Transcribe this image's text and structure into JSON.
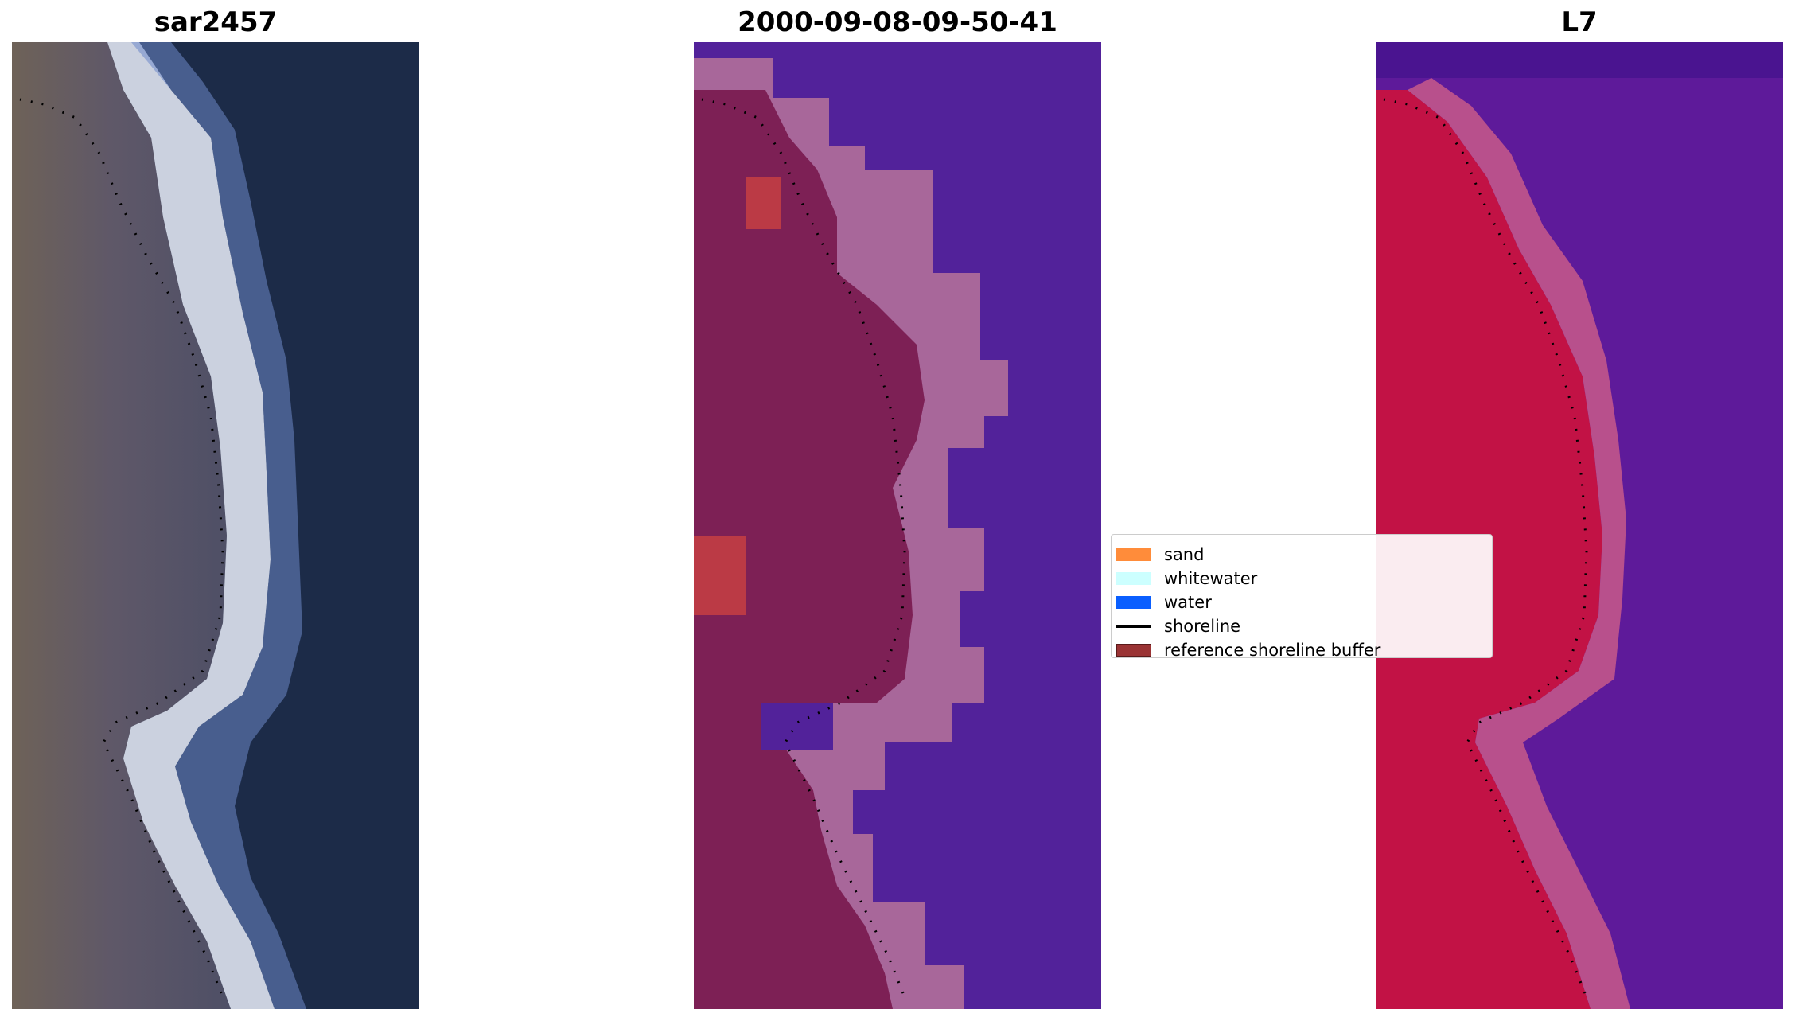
{
  "panels": [
    {
      "title": "sar2457",
      "image": "rgb-satellite-image"
    },
    {
      "title": "2000-09-08-09-50-41",
      "image": "classified-image"
    },
    {
      "title": "L7",
      "image": "false-color-image"
    }
  ],
  "legend": {
    "items": [
      {
        "label": "sand",
        "color": "#FF8C3A",
        "kind": "patch"
      },
      {
        "label": "whitewater",
        "color": "#CCFFFF",
        "kind": "patch"
      },
      {
        "label": "water",
        "color": "#0A5FFF",
        "kind": "patch"
      },
      {
        "label": "shoreline",
        "color": "#000000",
        "kind": "line"
      },
      {
        "label": "reference shoreline buffer",
        "color": "#9A3334",
        "kind": "patch"
      }
    ]
  },
  "colors": {
    "deep_water": "#1C2B48",
    "land": "#6B6070",
    "surf": "#E8ECF5",
    "class_land": "#7D2055",
    "class_water": "#52229A",
    "class_buffer": "#A8679A",
    "class_sand": "#BB3A45",
    "fc_land": "#C21245",
    "fc_water": "#5E1A9A"
  }
}
